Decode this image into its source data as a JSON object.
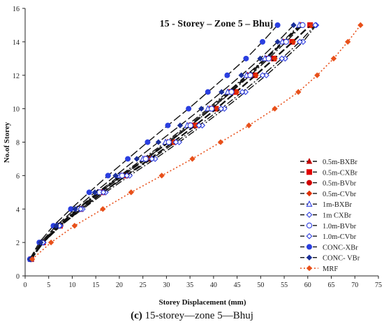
{
  "caption": {
    "label": "(c)",
    "text": "15-storey—zone 5—Bhuj"
  },
  "chart_data": {
    "type": "line",
    "title": "15 - Storey – Zone 5 – Bhuj",
    "xlabel": "Storey Displacement (mm)",
    "ylabel": "No.of Storey",
    "xlim": [
      0,
      75
    ],
    "ylim": [
      0,
      16
    ],
    "xticks": [
      0,
      5,
      10,
      15,
      20,
      25,
      30,
      35,
      40,
      45,
      50,
      55,
      60,
      65,
      70,
      75
    ],
    "yticks": [
      0,
      2,
      4,
      6,
      8,
      10,
      12,
      14,
      16
    ],
    "grid": false,
    "legend_position": "right",
    "y": [
      1,
      2,
      3,
      4,
      5,
      6,
      7,
      8,
      9,
      10,
      11,
      12,
      13,
      14,
      15
    ],
    "series": [
      {
        "name": "0.5m-BXBr",
        "color": "#c00000",
        "marker": "triangle",
        "dash": "10,4",
        "x": [
          1.2,
          3.6,
          7.0,
          11.2,
          15.6,
          20.4,
          25.4,
          30.2,
          34.8,
          39.2,
          43.3,
          47.2,
          51.0,
          54.8,
          58.5
        ]
      },
      {
        "name": "0.5m-CXBr",
        "color": "#e00000",
        "marker": "square",
        "dash": "10,4",
        "x": [
          1.3,
          3.8,
          7.4,
          11.8,
          16.4,
          21.3,
          26.4,
          31.3,
          36.0,
          40.5,
          44.7,
          48.8,
          52.8,
          56.7,
          60.5
        ]
      },
      {
        "name": "0.5m-BVbr",
        "color": "#d00000",
        "marker": "circle",
        "dash": "10,4",
        "x": [
          1.2,
          3.7,
          7.2,
          11.5,
          16.0,
          20.8,
          25.8,
          30.6,
          35.2,
          39.6,
          43.6,
          47.5,
          51.3,
          55.0,
          58.7
        ]
      },
      {
        "name": "0.5m-CVbr",
        "color": "#e03000",
        "marker": "diamond",
        "dash": "10,4",
        "x": [
          1.3,
          3.9,
          7.6,
          12.0,
          16.6,
          21.5,
          26.6,
          31.5,
          36.2,
          40.7,
          44.9,
          49.0,
          53.0,
          56.9,
          60.7
        ]
      },
      {
        "name": "1m-BXBr",
        "color": "#3040e0",
        "marker": "triangle-open",
        "dash": "10,3,2,3",
        "x": [
          1.2,
          3.5,
          6.9,
          11.0,
          15.4,
          20.1,
          25.0,
          29.8,
          34.4,
          38.8,
          43.0,
          47.0,
          50.9,
          54.6,
          58.2
        ]
      },
      {
        "name": "1m CXBr",
        "color": "#3040e0",
        "marker": "diamond-open",
        "dash": "10,3,2,3",
        "x": [
          1.3,
          3.9,
          7.5,
          12.2,
          17.1,
          22.2,
          27.6,
          32.7,
          37.6,
          42.3,
          46.8,
          51.2,
          55.2,
          59.0,
          61.8
        ]
      },
      {
        "name": "1.0m-BVbr",
        "color": "#3040e0",
        "marker": "circle-open",
        "dash": "10,3,2,3",
        "x": [
          1.2,
          3.6,
          7.0,
          11.3,
          15.8,
          20.6,
          25.6,
          30.5,
          35.1,
          39.6,
          43.8,
          47.8,
          51.7,
          55.4,
          58.9
        ]
      },
      {
        "name": "1.0m-CVbr",
        "color": "#3040e0",
        "marker": "diamond-open",
        "dash": "10,3,2,3",
        "x": [
          1.3,
          3.8,
          7.3,
          11.8,
          16.6,
          21.6,
          26.9,
          32.0,
          36.9,
          41.6,
          46.1,
          50.4,
          54.5,
          58.3,
          61.6
        ]
      },
      {
        "name": "CONC-XBr",
        "color": "#2a3fe0",
        "marker": "circle",
        "dash": "12,4",
        "x": [
          1.0,
          3.0,
          6.0,
          9.7,
          13.6,
          17.6,
          21.8,
          26.0,
          30.3,
          34.7,
          38.8,
          42.9,
          46.9,
          50.4,
          53.6
        ]
      },
      {
        "name": "CONC- VBr",
        "color": "#1a2f9a",
        "marker": "diamond",
        "dash": "12,4",
        "x": [
          1.1,
          3.3,
          6.6,
          10.6,
          14.8,
          19.2,
          23.7,
          28.3,
          32.9,
          37.4,
          41.7,
          45.9,
          49.9,
          53.6,
          57.0
        ]
      },
      {
        "name": "MRF",
        "color": "#e8501a",
        "marker": "diamond",
        "dash": "2,3",
        "x": [
          1.5,
          5.5,
          10.5,
          16.5,
          22.5,
          29.0,
          35.5,
          41.5,
          47.5,
          53.0,
          58.0,
          62.0,
          65.5,
          68.5,
          71.2
        ]
      }
    ]
  }
}
